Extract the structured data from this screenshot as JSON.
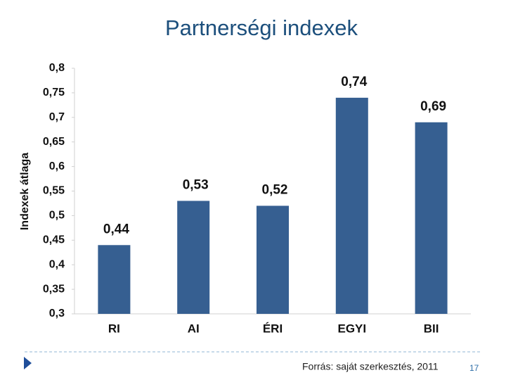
{
  "chart_data": {
    "type": "bar",
    "title": "Partnerségi indexek",
    "y_label": "Indexek átlaga",
    "categories": [
      "RI",
      "AI",
      "ÉRI",
      "EGYI",
      "BII"
    ],
    "values": [
      0.44,
      0.53,
      0.52,
      0.74,
      0.69
    ],
    "value_labels": [
      "0,44",
      "0,53",
      "0,52",
      "0,74",
      "0,69"
    ],
    "color": "#365f91",
    "ylim": [
      0.3,
      0.8
    ],
    "yticks": [
      {
        "value": 0.3,
        "label": "0,3"
      },
      {
        "value": 0.35,
        "label": "0,35"
      },
      {
        "value": 0.4,
        "label": "0,4"
      },
      {
        "value": 0.45,
        "label": "0,45"
      },
      {
        "value": 0.5,
        "label": "0,5"
      },
      {
        "value": 0.55,
        "label": "0,55"
      },
      {
        "value": 0.6,
        "label": "0,6"
      },
      {
        "value": 0.65,
        "label": "0,65"
      },
      {
        "value": 0.7,
        "label": "0,7"
      },
      {
        "value": 0.75,
        "label": "0,75"
      },
      {
        "value": 0.8,
        "label": "0,8"
      }
    ],
    "grid": false
  },
  "footer": {
    "source": "Forrás: saját szerkesztés, 2011",
    "page_number": "17"
  }
}
